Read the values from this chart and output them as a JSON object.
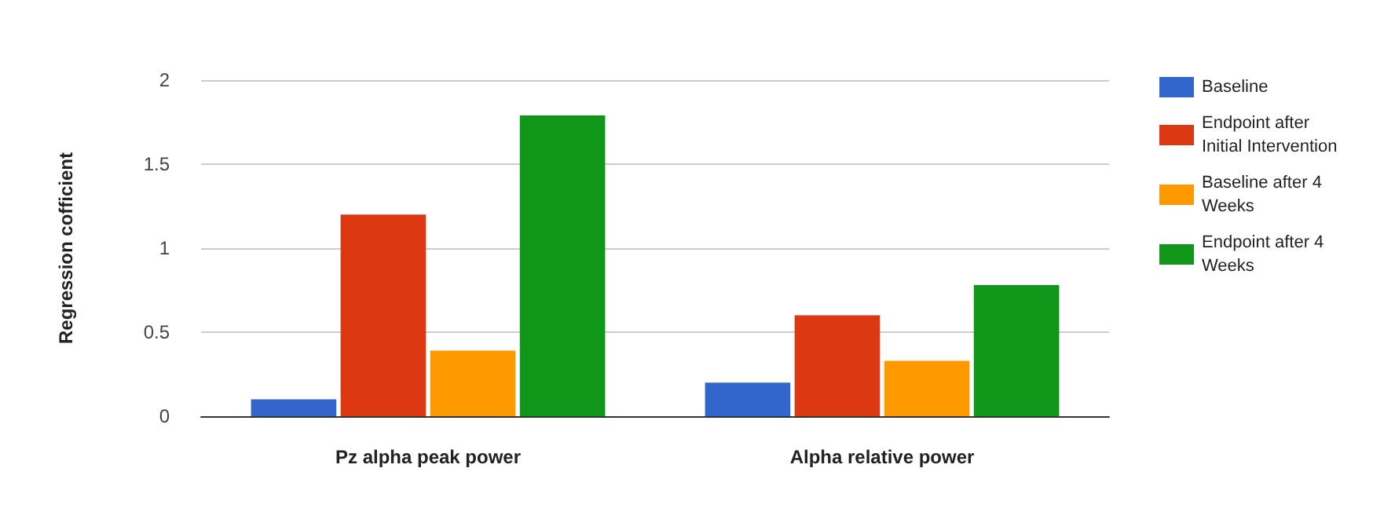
{
  "chart_data": {
    "type": "bar",
    "ylabel": "Regression cofficient",
    "categories": [
      "Pz alpha peak power",
      "Alpha relative power"
    ],
    "series": [
      {
        "name": "Baseline",
        "color": "#3366cc",
        "values": [
          0.1,
          0.2
        ]
      },
      {
        "name": "Endpoint after Initial Intervention",
        "color": "#dc3912",
        "values": [
          1.2,
          0.6
        ]
      },
      {
        "name": "Baseline after 4 Weeks",
        "color": "#ff9900",
        "values": [
          0.39,
          0.33
        ]
      },
      {
        "name": "Endpoint after 4 Weeks",
        "color": "#109618",
        "values": [
          1.79,
          0.78
        ]
      }
    ],
    "ylim": [
      0,
      2
    ],
    "yticks": [
      0,
      0.5,
      1,
      1.5,
      2
    ],
    "grid": "y",
    "legend": "right"
  }
}
